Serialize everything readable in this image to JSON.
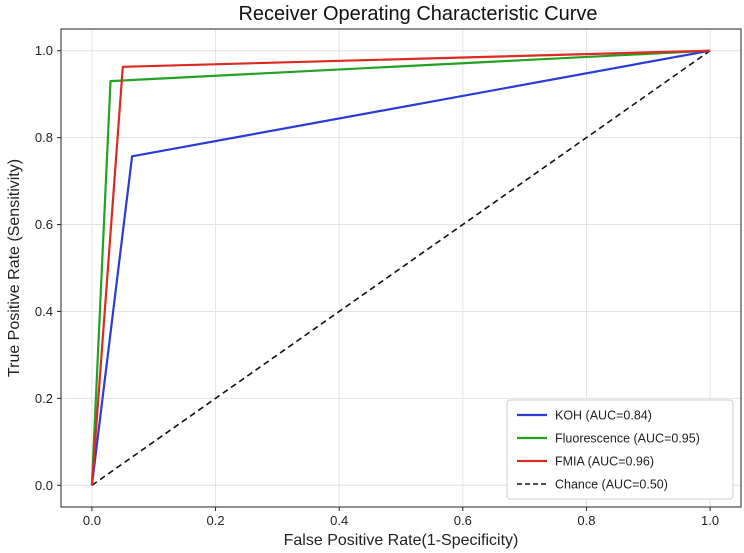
{
  "chart_data": {
    "type": "line",
    "title": "Receiver Operating Characteristic Curve",
    "xlabel": "False Positive Rate(1-Specificity)",
    "ylabel": "True Positive Rate (Sensitivity)",
    "xlim": [
      -0.05,
      1.05
    ],
    "ylim": [
      -0.05,
      1.05
    ],
    "xticks": [
      0.0,
      0.2,
      0.4,
      0.6,
      0.8,
      1.0
    ],
    "yticks": [
      0.0,
      0.2,
      0.4,
      0.6,
      0.8,
      1.0
    ],
    "grid": true,
    "legend_position": "bottom-right",
    "series": [
      {
        "name": "KOH",
        "label": "KOH (AUC=0.84)",
        "color": "#2b3bd6",
        "dashed": false,
        "x": [
          0.0,
          0.065,
          1.0
        ],
        "y": [
          0.0,
          0.757,
          1.0
        ]
      },
      {
        "name": "Fluorescence",
        "label": "Fluorescence  (AUC=0.95)",
        "color": "#21a321",
        "dashed": false,
        "x": [
          0.0,
          0.03,
          1.0
        ],
        "y": [
          0.0,
          0.93,
          1.0
        ]
      },
      {
        "name": "FMIA",
        "label": "FMIA (AUC=0.96)",
        "color": "#dc2a22",
        "dashed": false,
        "x": [
          0.0,
          0.05,
          1.0
        ],
        "y": [
          0.0,
          0.963,
          1.0
        ]
      },
      {
        "name": "Chance",
        "label": "Chance  (AUC=0.50)",
        "color": "#111111",
        "dashed": true,
        "x": [
          0.0,
          1.0
        ],
        "y": [
          0.0,
          1.0
        ]
      }
    ]
  }
}
